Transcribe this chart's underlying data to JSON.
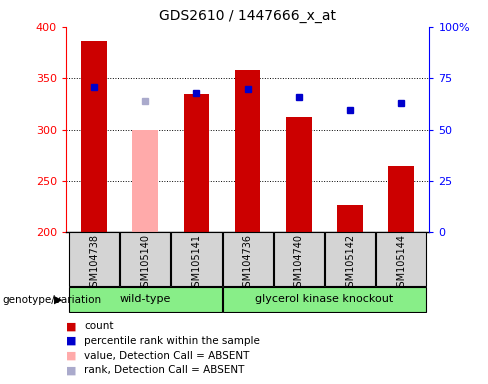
{
  "title": "GDS2610 / 1447666_x_at",
  "samples": [
    "GSM104738",
    "GSM105140",
    "GSM105141",
    "GSM104736",
    "GSM104740",
    "GSM105142",
    "GSM105144"
  ],
  "count_values": [
    386,
    300,
    335,
    358,
    312,
    227,
    265
  ],
  "count_absent": [
    false,
    true,
    false,
    false,
    false,
    false,
    false
  ],
  "rank_values": [
    341,
    328,
    336,
    340,
    332,
    319,
    326
  ],
  "rank_absent": [
    false,
    true,
    false,
    false,
    false,
    false,
    false
  ],
  "ylim": [
    200,
    400
  ],
  "y2lim": [
    0,
    100
  ],
  "yticks": [
    200,
    250,
    300,
    350,
    400
  ],
  "y2ticks": [
    0,
    25,
    50,
    75,
    100
  ],
  "y2ticklabels": [
    "0",
    "25",
    "50",
    "75",
    "100%"
  ],
  "group1_label": "wild-type",
  "group1_indices": [
    0,
    1,
    2
  ],
  "group2_label": "glycerol kinase knockout",
  "group2_indices": [
    3,
    4,
    5,
    6
  ],
  "bar_color_present": "#cc0000",
  "bar_color_absent": "#ffaaaa",
  "rank_color_present": "#0000cc",
  "rank_color_absent": "#aaaacc",
  "group_color": "#88ee88",
  "bar_width": 0.5,
  "legend_items": [
    {
      "label": "count",
      "color": "#cc0000"
    },
    {
      "label": "percentile rank within the sample",
      "color": "#0000cc"
    },
    {
      "label": "value, Detection Call = ABSENT",
      "color": "#ffaaaa"
    },
    {
      "label": "rank, Detection Call = ABSENT",
      "color": "#aaaacc"
    }
  ]
}
